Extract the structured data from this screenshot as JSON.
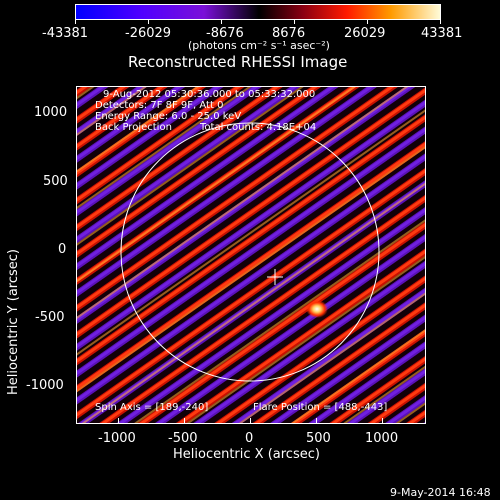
{
  "colorbar": {
    "ticks": [
      "-43381",
      "-26029",
      "-8676",
      "8676",
      "26029",
      "43381"
    ],
    "units": "(photons cm⁻² s⁻¹ asec⁻²)"
  },
  "title": "Reconstructed RHESSI Image",
  "info": {
    "time": "9-Aug-2012 05:30:36.000 to 05:33:32.000",
    "detectors": "Detectors: 7F 8F 9F, Att 0",
    "energy": "Energy Range: 6.0 - 25.0 keV",
    "method": "Back Projection",
    "counts": "Total counts: 4.18E+04"
  },
  "footer": {
    "spin_axis": "Spin Axis = [189,-240]",
    "flare_position": "Flare Position = [488,-443]"
  },
  "axes": {
    "xlabel": "Heliocentric X (arcsec)",
    "ylabel": "Heliocentric Y (arcsec)",
    "xticks": [
      "-1000",
      "-500",
      "0",
      "500",
      "1000"
    ],
    "yticks": [
      "1000",
      "500",
      "0",
      "-500",
      "-1000"
    ]
  },
  "timestamp": "9-May-2014 16:48",
  "colors": {
    "background": "#000000",
    "text": "#ffffff",
    "colormap": [
      "#0000ff",
      "#5a00ff",
      "#7000ff",
      "#2a0030",
      "#000000",
      "#8a0010",
      "#ff0000",
      "#ff8000",
      "#ffff80"
    ]
  }
}
